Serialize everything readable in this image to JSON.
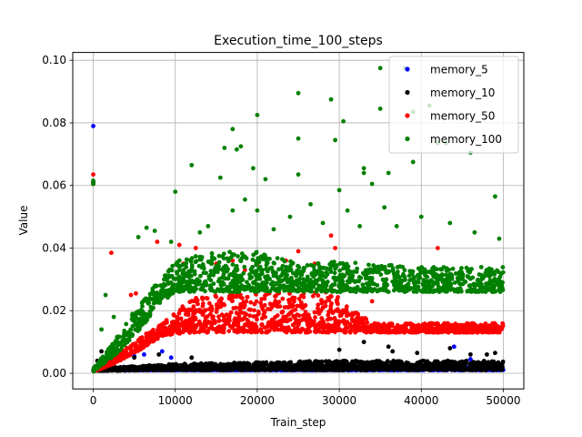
{
  "chart_data": {
    "type": "scatter",
    "title": "Execution_time_100_steps",
    "xlabel": "Train_step",
    "ylabel": "Value",
    "xlim": [
      -2500,
      52500
    ],
    "ylim": [
      -0.005,
      0.1025
    ],
    "xticks": [
      0,
      10000,
      20000,
      30000,
      40000,
      50000
    ],
    "xtick_labels": [
      "0",
      "10000",
      "20000",
      "30000",
      "40000",
      "50000"
    ],
    "yticks": [
      0.0,
      0.02,
      0.04,
      0.06,
      0.08,
      0.1
    ],
    "ytick_labels": [
      "0.00",
      "0.02",
      "0.04",
      "0.06",
      "0.08",
      "0.10"
    ],
    "grid": true,
    "legend_position": "top-right",
    "series": [
      {
        "name": "memory_5",
        "color": "#0000ff",
        "outliers": [
          [
            0,
            0.079
          ],
          [
            3000,
            0.006
          ],
          [
            3500,
            0.0055
          ],
          [
            5000,
            0.0055
          ],
          [
            6200,
            0.006
          ],
          [
            8400,
            0.007
          ],
          [
            9500,
            0.005
          ],
          [
            12000,
            0.005
          ],
          [
            44000,
            0.0085
          ],
          [
            46000,
            0.0045
          ]
        ],
        "band": [
          {
            "x": 0,
            "low": 0.001,
            "high": 0.001
          },
          {
            "x": 50000,
            "low": 0.001,
            "high": 0.002
          }
        ]
      },
      {
        "name": "memory_10",
        "color": "#000000",
        "outliers": [
          [
            0,
            0.061
          ],
          [
            500,
            0.004
          ],
          [
            1000,
            0.007
          ],
          [
            2000,
            0.005
          ],
          [
            3000,
            0.004
          ],
          [
            5000,
            0.005
          ],
          [
            8000,
            0.006
          ],
          [
            12000,
            0.005
          ],
          [
            30000,
            0.0075
          ],
          [
            33000,
            0.01
          ],
          [
            36000,
            0.0085
          ],
          [
            36500,
            0.007
          ],
          [
            39500,
            0.0065
          ],
          [
            43500,
            0.008
          ],
          [
            46000,
            0.006
          ],
          [
            48000,
            0.006
          ],
          [
            49000,
            0.0065
          ]
        ],
        "band": [
          {
            "x": 0,
            "low": 0.0008,
            "high": 0.0015
          },
          {
            "x": 10000,
            "low": 0.001,
            "high": 0.003
          },
          {
            "x": 30000,
            "low": 0.001,
            "high": 0.004
          },
          {
            "x": 50000,
            "low": 0.001,
            "high": 0.004
          }
        ]
      },
      {
        "name": "memory_50",
        "color": "#ff0000",
        "outliers": [
          [
            0,
            0.0635
          ],
          [
            0,
            0.0605
          ],
          [
            2200,
            0.0385
          ],
          [
            4600,
            0.025
          ],
          [
            5200,
            0.0255
          ],
          [
            7800,
            0.042
          ],
          [
            10500,
            0.041
          ],
          [
            11000,
            0.035
          ],
          [
            12500,
            0.04
          ],
          [
            15000,
            0.035
          ],
          [
            17000,
            0.036
          ],
          [
            18500,
            0.033
          ],
          [
            20000,
            0.035
          ],
          [
            23500,
            0.036
          ],
          [
            25000,
            0.039
          ],
          [
            27000,
            0.035
          ],
          [
            29000,
            0.044
          ],
          [
            29500,
            0.04
          ],
          [
            31000,
            0.032
          ],
          [
            34000,
            0.023
          ],
          [
            42000,
            0.04
          ]
        ],
        "band": [
          {
            "x": 0,
            "low": 0.0005,
            "high": 0.001
          },
          {
            "x": 3000,
            "low": 0.0035,
            "high": 0.006
          },
          {
            "x": 6000,
            "low": 0.008,
            "high": 0.012
          },
          {
            "x": 8500,
            "low": 0.012,
            "high": 0.016
          },
          {
            "x": 12000,
            "low": 0.013,
            "high": 0.024
          },
          {
            "x": 20000,
            "low": 0.013,
            "high": 0.026
          },
          {
            "x": 29000,
            "low": 0.013,
            "high": 0.026
          },
          {
            "x": 34000,
            "low": 0.013,
            "high": 0.016
          },
          {
            "x": 50000,
            "low": 0.013,
            "high": 0.016
          }
        ]
      },
      {
        "name": "memory_100",
        "color": "#008000",
        "outliers": [
          [
            0,
            0.0605
          ],
          [
            0,
            0.0615
          ],
          [
            10000,
            0.058
          ],
          [
            12000,
            0.0665
          ],
          [
            15500,
            0.0625
          ],
          [
            16000,
            0.072
          ],
          [
            17000,
            0.078
          ],
          [
            17500,
            0.0715
          ],
          [
            18000,
            0.0725
          ],
          [
            19500,
            0.0655
          ],
          [
            20000,
            0.0825
          ],
          [
            21000,
            0.062
          ],
          [
            25000,
            0.075
          ],
          [
            25000,
            0.0895
          ],
          [
            25000,
            0.0635
          ],
          [
            29000,
            0.0875
          ],
          [
            29500,
            0.0745
          ],
          [
            30500,
            0.0805
          ],
          [
            30000,
            0.0585
          ],
          [
            33000,
            0.064
          ],
          [
            33000,
            0.0655
          ],
          [
            34000,
            0.0605
          ],
          [
            35000,
            0.0975
          ],
          [
            35000,
            0.0845
          ],
          [
            36000,
            0.064
          ],
          [
            38000,
            0.0975
          ],
          [
            39000,
            0.0835
          ],
          [
            39000,
            0.0675
          ],
          [
            41000,
            0.0855
          ],
          [
            42000,
            0.0735
          ],
          [
            43000,
            0.0735
          ],
          [
            46000,
            0.0705
          ],
          [
            49000,
            0.0565
          ],
          [
            5500,
            0.0435
          ],
          [
            6500,
            0.0465
          ],
          [
            7500,
            0.0455
          ],
          [
            9500,
            0.042
          ],
          [
            13000,
            0.045
          ],
          [
            14000,
            0.047
          ],
          [
            17000,
            0.052
          ],
          [
            18500,
            0.0555
          ],
          [
            20000,
            0.052
          ],
          [
            22000,
            0.046
          ],
          [
            24000,
            0.05
          ],
          [
            26500,
            0.054
          ],
          [
            28000,
            0.048
          ],
          [
            31000,
            0.052
          ],
          [
            32500,
            0.047
          ],
          [
            35500,
            0.053
          ],
          [
            37000,
            0.047
          ],
          [
            40000,
            0.05
          ],
          [
            43500,
            0.048
          ],
          [
            46500,
            0.045
          ],
          [
            49500,
            0.043
          ],
          [
            1000,
            0.014
          ],
          [
            1500,
            0.025
          ],
          [
            2500,
            0.018
          ]
        ],
        "band": [
          {
            "x": 0,
            "low": 0.0005,
            "high": 0.0015
          },
          {
            "x": 3000,
            "low": 0.0065,
            "high": 0.012
          },
          {
            "x": 6000,
            "low": 0.015,
            "high": 0.024
          },
          {
            "x": 8500,
            "low": 0.023,
            "high": 0.031
          },
          {
            "x": 10000,
            "low": 0.026,
            "high": 0.036
          },
          {
            "x": 15000,
            "low": 0.026,
            "high": 0.039
          },
          {
            "x": 20000,
            "low": 0.026,
            "high": 0.039
          },
          {
            "x": 25000,
            "low": 0.026,
            "high": 0.035
          },
          {
            "x": 30000,
            "low": 0.026,
            "high": 0.036
          },
          {
            "x": 40000,
            "low": 0.026,
            "high": 0.034
          },
          {
            "x": 50000,
            "low": 0.026,
            "high": 0.034
          }
        ]
      }
    ]
  }
}
